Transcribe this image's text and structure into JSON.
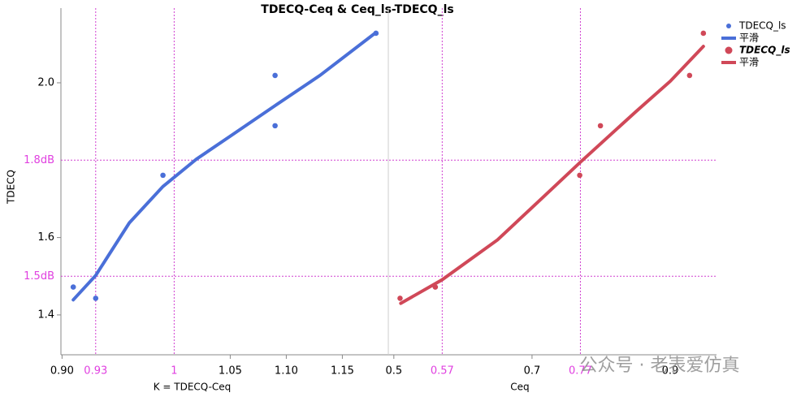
{
  "title": "TDECQ-Ceq & Ceq_ls-TDECQ_ls",
  "y_label": "TDECQ",
  "watermark": "公众号 · 老表爱仿真",
  "chart_data": [
    {
      "type": "scatter",
      "x_label": "K = TDECQ-Ceq",
      "xlim": [
        0.899,
        1.191
      ],
      "xticks": [
        {
          "value": 0.9,
          "label": "0.90"
        },
        1.05,
        {
          "value": 1.1,
          "label": "1.10"
        },
        1.15
      ],
      "xrefs": [
        0.93,
        1
      ],
      "ylim": [
        1.297,
        2.193
      ],
      "yticks": [
        1.4,
        1.6,
        {
          "value": 2,
          "label": "2.0"
        }
      ],
      "yrefs": [
        {
          "value": 1.8,
          "label": "1.8dB"
        },
        {
          "value": 1.5,
          "label": "1.5dB"
        }
      ],
      "series": [
        {
          "name": "TDECQ_ls",
          "kind": "points",
          "color": "#4a6fd8",
          "x": [
            0.91,
            0.93,
            0.99,
            1.09,
            1.09,
            1.18
          ],
          "values": [
            1.472,
            1.443,
            1.761,
            2.019,
            1.889,
            2.128
          ]
        },
        {
          "name": "平滑",
          "kind": "line",
          "color": "#4a6fd8",
          "x": [
            0.91,
            0.93,
            0.96,
            0.99,
            1.02,
            1.05,
            1.09,
            1.13,
            1.18
          ],
          "values": [
            1.439,
            1.502,
            1.638,
            1.732,
            1.803,
            1.862,
            1.941,
            2.019,
            2.13
          ]
        }
      ]
    },
    {
      "type": "scatter",
      "x_label": "Ceq",
      "xlim": [
        0.492,
        0.967
      ],
      "xticks": [
        0.5,
        0.7,
        0.9
      ],
      "xrefs": [
        0.57,
        0.77
      ],
      "ylim": [
        1.297,
        2.193
      ],
      "series": [
        {
          "name": "TDECQ_ls",
          "kind": "points",
          "color": "#d04858",
          "x": [
            0.509,
            0.56,
            0.769,
            0.799,
            0.928,
            0.948
          ],
          "values": [
            1.443,
            1.472,
            1.761,
            1.889,
            2.019,
            2.128
          ]
        },
        {
          "name": "平滑",
          "kind": "line",
          "color": "#d04858",
          "x": [
            0.51,
            0.57,
            0.65,
            0.72,
            0.77,
            0.85,
            0.9,
            0.948
          ],
          "values": [
            1.43,
            1.491,
            1.594,
            1.711,
            1.795,
            1.925,
            2.004,
            2.094
          ]
        }
      ]
    }
  ]
}
